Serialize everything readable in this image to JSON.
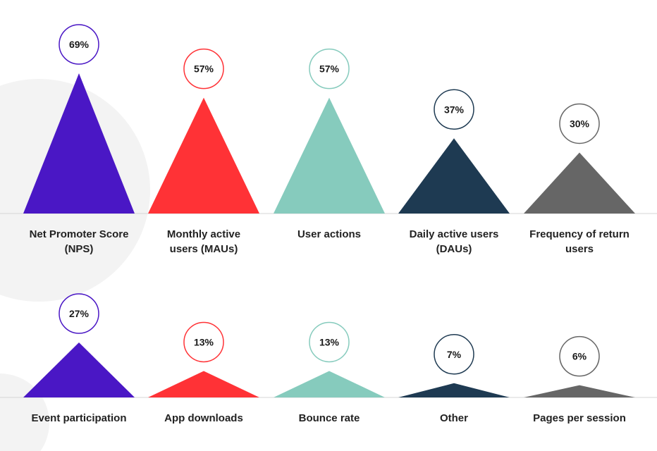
{
  "chart_data": {
    "type": "bar",
    "unit": "%",
    "grid": false,
    "series": [
      {
        "values": [
          69,
          57,
          57,
          37,
          30,
          27,
          13,
          13,
          7,
          6
        ]
      }
    ],
    "categories": [
      {
        "label": [
          "Net Promoter Score",
          "(NPS)"
        ],
        "value": 69,
        "display": "69%",
        "color": "#4a17c5"
      },
      {
        "label": [
          "Monthly active",
          "users (MAUs)"
        ],
        "value": 57,
        "display": "57%",
        "color": "#ff3236"
      },
      {
        "label": [
          "User actions"
        ],
        "value": 57,
        "display": "57%",
        "color": "#86cbbd"
      },
      {
        "label": [
          "Daily active users",
          "(DAUs)"
        ],
        "value": 37,
        "display": "37%",
        "color": "#1e3a52"
      },
      {
        "label": [
          "Frequency of return",
          "users"
        ],
        "value": 30,
        "display": "30%",
        "color": "#666666"
      },
      {
        "label": [
          "Event participation"
        ],
        "value": 27,
        "display": "27%",
        "color": "#4a17c5"
      },
      {
        "label": [
          "App downloads"
        ],
        "value": 13,
        "display": "13%",
        "color": "#ff3236"
      },
      {
        "label": [
          "Bounce rate"
        ],
        "value": 13,
        "display": "13%",
        "color": "#86cbbd"
      },
      {
        "label": [
          "Other"
        ],
        "value": 7,
        "display": "7%",
        "color": "#1e3a52"
      },
      {
        "label": [
          "Pages per session"
        ],
        "value": 6,
        "display": "6%",
        "color": "#666666"
      }
    ]
  }
}
